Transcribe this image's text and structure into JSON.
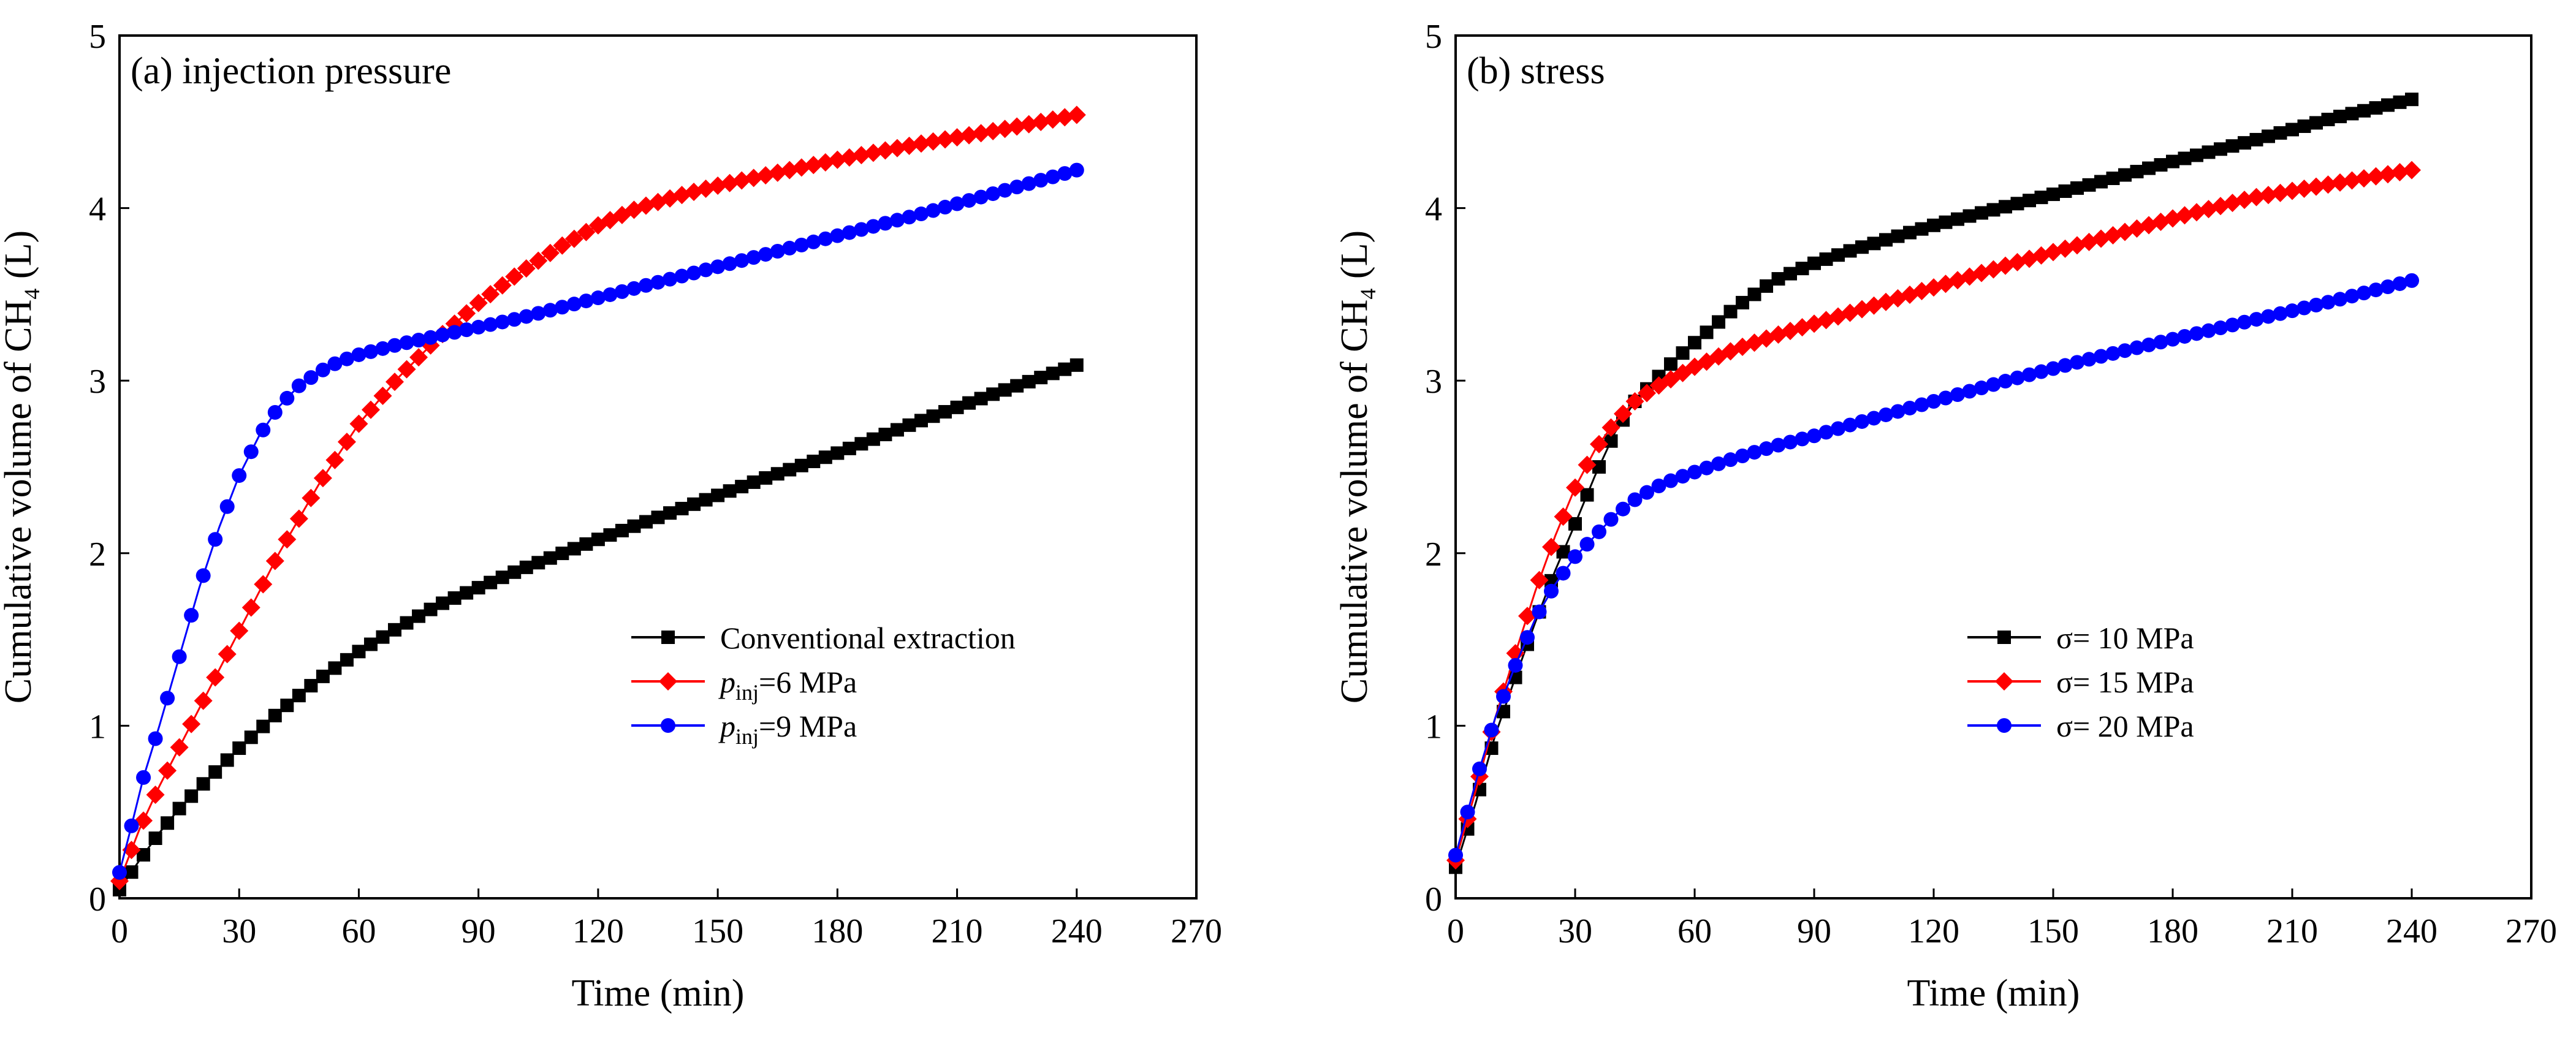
{
  "chart_data": [
    {
      "type": "line",
      "title": "(a) injection pressure",
      "xlabel": "Time (min)",
      "ylabel_main": "Cumulative volume of CH",
      "ylabel_sub": "4",
      "ylabel_tail": " (L)",
      "xlim": [
        0,
        270
      ],
      "ylim": [
        0,
        5
      ],
      "xticks": [
        0,
        30,
        60,
        90,
        120,
        150,
        180,
        210,
        240,
        270
      ],
      "yticks": [
        0,
        1,
        2,
        3,
        4,
        5
      ],
      "xtick_labels": [
        "0",
        "30",
        "60",
        "90",
        "120",
        "150",
        "180",
        "210",
        "240",
        "270"
      ],
      "ytick_labels": [
        "0",
        "1",
        "2",
        "3",
        "4",
        "5"
      ],
      "legend_position": "center-right",
      "series": [
        {
          "name": "Conventional extraction",
          "legend_label": "Conventional extraction",
          "label_prefix": "",
          "label_subscript": "",
          "label_suffix": "",
          "color": "#000000",
          "marker": "square",
          "x": [
            0,
            5,
            10,
            15,
            20,
            30,
            40,
            50,
            60,
            70,
            80,
            90,
            100,
            120,
            140,
            160,
            180,
            200,
            220,
            240
          ],
          "y": [
            0.05,
            0.22,
            0.38,
            0.52,
            0.64,
            0.87,
            1.08,
            1.27,
            1.43,
            1.57,
            1.7,
            1.8,
            1.9,
            2.08,
            2.25,
            2.42,
            2.58,
            2.76,
            2.93,
            3.09
          ]
        },
        {
          "name": "p_inj=6 MPa",
          "legend_label": "p_inj=6 MPa",
          "label_prefix": "p",
          "label_subscript": "inj",
          "label_suffix": "=6 MPa",
          "color": "#ff0000",
          "marker": "diamond",
          "x": [
            0,
            5,
            10,
            20,
            30,
            40,
            50,
            60,
            70,
            80,
            90,
            100,
            110,
            120,
            130,
            140,
            150,
            160,
            180,
            200,
            220,
            240
          ],
          "y": [
            0.1,
            0.4,
            0.65,
            1.1,
            1.55,
            2.0,
            2.4,
            2.75,
            3.02,
            3.25,
            3.45,
            3.62,
            3.77,
            3.9,
            4.0,
            4.07,
            4.13,
            4.18,
            4.28,
            4.37,
            4.45,
            4.54
          ]
        },
        {
          "name": "p_inj=9 MPa",
          "legend_label": "p_inj=9 MPa",
          "label_prefix": "p",
          "label_subscript": "inj",
          "label_suffix": "=9 MPa",
          "color": "#0000ff",
          "marker": "circle",
          "x": [
            0,
            3,
            6,
            10,
            15,
            20,
            25,
            30,
            35,
            40,
            45,
            50,
            55,
            60,
            70,
            80,
            90,
            100,
            120,
            140,
            160,
            180,
            200,
            220,
            240
          ],
          "y": [
            0.15,
            0.42,
            0.7,
            1.0,
            1.4,
            1.8,
            2.15,
            2.45,
            2.68,
            2.85,
            2.97,
            3.05,
            3.11,
            3.15,
            3.21,
            3.26,
            3.31,
            3.36,
            3.48,
            3.6,
            3.72,
            3.84,
            3.96,
            4.09,
            4.22
          ]
        }
      ]
    },
    {
      "type": "line",
      "title": "(b) stress",
      "xlabel": "Time (min)",
      "ylabel_main": "Cumulative volume of CH",
      "ylabel_sub": "4",
      "ylabel_tail": " (L)",
      "xlim": [
        0,
        270
      ],
      "ylim": [
        0,
        5
      ],
      "xticks": [
        0,
        30,
        60,
        90,
        120,
        150,
        180,
        210,
        240,
        270
      ],
      "yticks": [
        0,
        1,
        2,
        3,
        4,
        5
      ],
      "xtick_labels": [
        "0",
        "30",
        "60",
        "90",
        "120",
        "150",
        "180",
        "210",
        "240",
        "270"
      ],
      "ytick_labels": [
        "0",
        "1",
        "2",
        "3",
        "4",
        "5"
      ],
      "legend_position": "center-right",
      "series": [
        {
          "name": "σ= 10 MPa",
          "legend_label": "σ= 10 MPa",
          "label_prefix": "",
          "label_subscript": "",
          "label_suffix": "",
          "color": "#000000",
          "marker": "square",
          "x": [
            0,
            5,
            10,
            15,
            20,
            25,
            30,
            35,
            40,
            45,
            50,
            55,
            60,
            65,
            70,
            80,
            90,
            100,
            120,
            140,
            160,
            180,
            200,
            220,
            240
          ],
          "y": [
            0.18,
            0.55,
            0.95,
            1.28,
            1.6,
            1.9,
            2.17,
            2.45,
            2.7,
            2.88,
            3.0,
            3.12,
            3.22,
            3.32,
            3.42,
            3.58,
            3.68,
            3.76,
            3.9,
            4.02,
            4.14,
            4.27,
            4.39,
            4.52,
            4.63
          ]
        },
        {
          "name": "σ= 15 MPa",
          "legend_label": "σ= 15 MPa",
          "label_prefix": "",
          "label_subscript": "",
          "label_suffix": "",
          "color": "#ff0000",
          "marker": "diamond",
          "x": [
            0,
            5,
            10,
            15,
            20,
            25,
            30,
            35,
            40,
            45,
            50,
            55,
            60,
            70,
            80,
            90,
            100,
            120,
            140,
            160,
            180,
            200,
            220,
            240
          ],
          "y": [
            0.22,
            0.62,
            1.05,
            1.42,
            1.78,
            2.1,
            2.38,
            2.6,
            2.76,
            2.88,
            2.96,
            3.02,
            3.08,
            3.18,
            3.26,
            3.33,
            3.4,
            3.54,
            3.68,
            3.81,
            3.94,
            4.06,
            4.14,
            4.22
          ]
        },
        {
          "name": "σ= 20 MPa",
          "legend_label": "σ= 20 MPa",
          "label_prefix": "",
          "label_subscript": "",
          "label_suffix": "",
          "color": "#0000ff",
          "marker": "circle",
          "x": [
            0,
            3,
            6,
            10,
            15,
            20,
            25,
            30,
            35,
            40,
            45,
            50,
            55,
            60,
            70,
            80,
            90,
            100,
            120,
            140,
            160,
            180,
            200,
            220,
            240
          ],
          "y": [
            0.25,
            0.5,
            0.75,
            1.05,
            1.35,
            1.62,
            1.82,
            1.98,
            2.1,
            2.22,
            2.31,
            2.38,
            2.43,
            2.47,
            2.55,
            2.62,
            2.68,
            2.75,
            2.88,
            3.01,
            3.13,
            3.24,
            3.35,
            3.46,
            3.58
          ]
        }
      ]
    }
  ]
}
